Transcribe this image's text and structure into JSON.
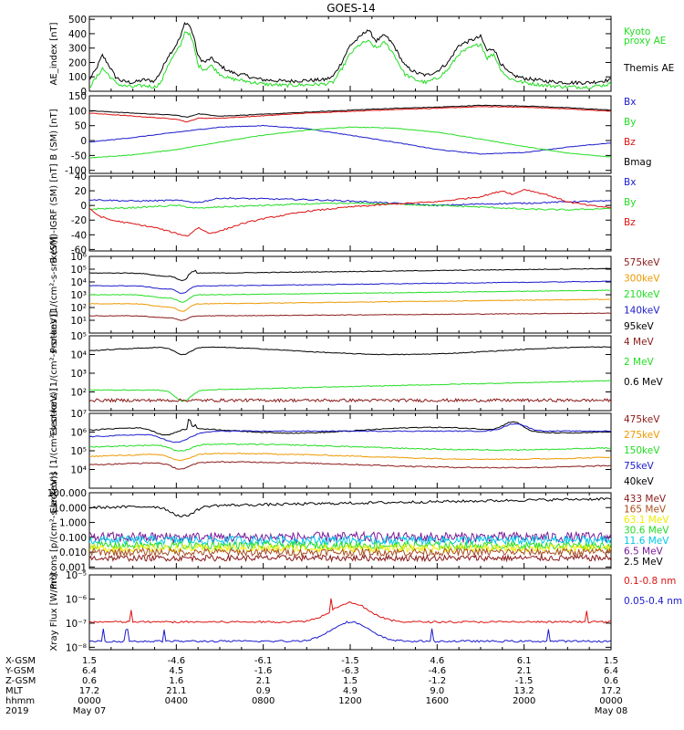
{
  "title": "GOES-14",
  "colors": {
    "black": "#000000",
    "green": "#22dd22",
    "blue": "#1a1acc",
    "red": "#dd1111",
    "orange": "#ee9900",
    "yellow": "#eeee00",
    "cyan": "#00c8e8",
    "purple": "#7a1a9a",
    "darkred": "#8b1a1a",
    "brown": "#a85020"
  },
  "xaxis": {
    "row_labels": [
      "X-GSM",
      "Y-GSM",
      "Z-GSM",
      "MLT",
      "hhmm",
      "2019"
    ],
    "ticks": [
      {
        "x": 0,
        "vals": [
          "1.5",
          "6.4",
          "0.6",
          "17.2",
          "0000",
          "May 07"
        ]
      },
      {
        "x": 4,
        "vals": [
          "-4.6",
          "4.5",
          "1.6",
          "21.1",
          "0400",
          ""
        ]
      },
      {
        "x": 8,
        "vals": [
          "-6.1",
          "-1.6",
          "2.1",
          "0.9",
          "0800",
          ""
        ]
      },
      {
        "x": 12,
        "vals": [
          "-1.5",
          "-6.3",
          "1.5",
          "4.9",
          "1200",
          ""
        ]
      },
      {
        "x": 16,
        "vals": [
          "4.6",
          "-4.6",
          "-1.2",
          "9.0",
          "1600",
          ""
        ]
      },
      {
        "x": 20,
        "vals": [
          "6.1",
          "2.1",
          "-1.5",
          "13.2",
          "2000",
          ""
        ]
      },
      {
        "x": 24,
        "vals": [
          "1.5",
          "6.4",
          "0.6",
          "17.2",
          "0000",
          "May 08"
        ]
      }
    ]
  },
  "chart_data": [
    {
      "type": "line",
      "ylabel": "AE_index [nT]",
      "scale": "linear",
      "ylim": [
        0,
        520
      ],
      "ticks": [
        "0",
        "100",
        "200",
        "300",
        "400",
        "500"
      ],
      "tick_values": [
        0,
        100,
        200,
        300,
        400,
        500
      ],
      "legend": [
        {
          "text": "Kyoto",
          "color": "green"
        },
        {
          "text": "proxy AE",
          "color": "green"
        },
        {
          "text": "Themis AE",
          "color": "black"
        }
      ],
      "series": [
        {
          "name": "Themis AE",
          "color": "black",
          "kind": "ae",
          "x": [
            0,
            0.3,
            0.6,
            0.9,
            1.2,
            1.5,
            2,
            2.5,
            3,
            3.3,
            3.6,
            3.9,
            4.2,
            4.4,
            4.6,
            4.8,
            5,
            5.3,
            5.6,
            6,
            6.4,
            6.8,
            7.2,
            7.6,
            8,
            9,
            10,
            10.8,
            11.2,
            11.6,
            12,
            12.4,
            12.8,
            13.2,
            13.6,
            14,
            14.5,
            15,
            15.5,
            16,
            16.5,
            17,
            17.5,
            18,
            18.3,
            18.6,
            18.9,
            19.2,
            19.5,
            20,
            21,
            22,
            23,
            24
          ],
          "y": [
            80,
            150,
            250,
            180,
            100,
            70,
            60,
            80,
            70,
            140,
            240,
            300,
            380,
            480,
            460,
            380,
            240,
            200,
            230,
            180,
            140,
            120,
            110,
            90,
            80,
            70,
            75,
            80,
            100,
            200,
            320,
            370,
            430,
            350,
            390,
            320,
            180,
            130,
            110,
            140,
            200,
            320,
            350,
            380,
            280,
            300,
            200,
            140,
            110,
            90,
            70,
            60,
            60,
            80
          ]
        },
        {
          "name": "Kyoto proxy AE",
          "color": "green",
          "kind": "ae",
          "x": [
            0,
            0.3,
            0.6,
            0.9,
            1.2,
            1.5,
            2,
            2.5,
            3,
            3.3,
            3.6,
            3.9,
            4.2,
            4.4,
            4.6,
            4.8,
            5,
            5.3,
            5.6,
            6,
            6.4,
            6.8,
            7.2,
            7.6,
            8,
            9,
            10,
            10.8,
            11.2,
            11.6,
            12,
            12.4,
            12.8,
            13.2,
            13.6,
            14,
            14.5,
            15,
            15.5,
            16,
            16.5,
            17,
            17.5,
            18,
            18.3,
            18.6,
            18.9,
            19.2,
            19.5,
            20,
            21,
            22,
            23,
            24
          ],
          "y": [
            30,
            90,
            160,
            110,
            60,
            40,
            30,
            40,
            30,
            60,
            180,
            250,
            320,
            420,
            400,
            320,
            180,
            150,
            180,
            120,
            90,
            80,
            70,
            60,
            50,
            40,
            45,
            50,
            60,
            150,
            260,
            320,
            350,
            300,
            340,
            260,
            120,
            80,
            60,
            90,
            150,
            260,
            300,
            330,
            230,
            260,
            160,
            100,
            80,
            60,
            40,
            30,
            30,
            50
          ]
        }
      ]
    },
    {
      "type": "line",
      "ylabel": "B (SM) [nT]",
      "scale": "linear",
      "ylim": [
        -110,
        150
      ],
      "ticks": [
        "-100",
        "-50",
        "0",
        "50",
        "100",
        "150"
      ],
      "tick_values": [
        -100,
        -50,
        0,
        50,
        100,
        150
      ],
      "legend": [
        {
          "text": "Bx",
          "color": "blue"
        },
        {
          "text": "By",
          "color": "green"
        },
        {
          "text": "Bz",
          "color": "red"
        },
        {
          "text": "Bmag",
          "color": "black"
        }
      ],
      "series": [
        {
          "name": "Bmag",
          "color": "black",
          "x": [
            0,
            2,
            4,
            4.5,
            5,
            6,
            8,
            10,
            12,
            14,
            16,
            18,
            20,
            22,
            24
          ],
          "y": [
            100,
            92,
            85,
            78,
            90,
            82,
            88,
            95,
            102,
            108,
            112,
            118,
            116,
            110,
            102
          ]
        },
        {
          "name": "Bz",
          "color": "red",
          "x": [
            0,
            2,
            4,
            4.5,
            5,
            6,
            8,
            10,
            12,
            14,
            16,
            18,
            20,
            22,
            24
          ],
          "y": [
            92,
            82,
            72,
            62,
            75,
            75,
            83,
            92,
            98,
            104,
            108,
            114,
            112,
            106,
            98
          ]
        },
        {
          "name": "Bx",
          "color": "blue",
          "x": [
            0,
            2,
            4,
            6,
            8,
            10,
            12,
            14,
            16,
            18,
            20,
            22,
            24
          ],
          "y": [
            -5,
            10,
            28,
            45,
            50,
            40,
            18,
            -5,
            -30,
            -45,
            -40,
            -22,
            -8
          ]
        },
        {
          "name": "By",
          "color": "green",
          "x": [
            0,
            2,
            4,
            6,
            8,
            10,
            12,
            14,
            16,
            18,
            20,
            22,
            24
          ],
          "y": [
            -58,
            -48,
            -30,
            -5,
            18,
            35,
            45,
            42,
            28,
            5,
            -20,
            -42,
            -55
          ]
        }
      ]
    },
    {
      "type": "line",
      "ylabel": "B (SM)-IGRF (SM) [nT]",
      "scale": "linear",
      "ylim": [
        -62,
        40
      ],
      "ticks": [
        "-60",
        "-40",
        "-20",
        "0",
        "20",
        "40"
      ],
      "tick_values": [
        -60,
        -40,
        -20,
        0,
        20,
        40
      ],
      "legend": [
        {
          "text": "Bx",
          "color": "blue"
        },
        {
          "text": "By",
          "color": "green"
        },
        {
          "text": "Bz",
          "color": "red"
        }
      ],
      "series": [
        {
          "name": "Bx",
          "color": "blue",
          "x": [
            0,
            2,
            4,
            5,
            6,
            8,
            10,
            12,
            14,
            16,
            18,
            20,
            22,
            24
          ],
          "y": [
            8,
            6,
            7,
            4,
            10,
            9,
            8,
            6,
            3,
            0,
            2,
            3,
            5,
            6
          ]
        },
        {
          "name": "By",
          "color": "green",
          "x": [
            0,
            2,
            4,
            5,
            6,
            8,
            10,
            12,
            14,
            16,
            18,
            20,
            22,
            24
          ],
          "y": [
            -5,
            -3,
            0,
            -4,
            -2,
            0,
            2,
            3,
            2,
            0,
            -2,
            -5,
            -6,
            -4
          ]
        },
        {
          "name": "Bz",
          "color": "red",
          "x": [
            0,
            0.5,
            1,
            2,
            3,
            4,
            4.5,
            5,
            5.5,
            6,
            7,
            8,
            10,
            12,
            14,
            16,
            18,
            19,
            19.5,
            20,
            21,
            22,
            23,
            24
          ],
          "y": [
            -5,
            -15,
            -20,
            -25,
            -30,
            -38,
            -42,
            -30,
            -38,
            -35,
            -25,
            -18,
            -8,
            -2,
            2,
            5,
            12,
            20,
            15,
            22,
            15,
            5,
            0,
            -3
          ]
        }
      ]
    },
    {
      "type": "line",
      "ylabel": "Protons [1/(cm²-s-sr-keV)]",
      "scale": "log",
      "ylim": [
        0,
        6
      ],
      "ticks": [
        "10¹",
        "10²",
        "10³",
        "10⁴",
        "10⁵",
        "10⁶"
      ],
      "tick_values": [
        1,
        2,
        3,
        4,
        5,
        6
      ],
      "legend": [
        {
          "text": "575keV",
          "color": "darkred"
        },
        {
          "text": "300keV",
          "color": "orange"
        },
        {
          "text": "210keV",
          "color": "green"
        },
        {
          "text": "140keV",
          "color": "blue"
        },
        {
          "text": "95keV",
          "color": "black"
        }
      ],
      "series": [
        {
          "name": "95keV",
          "color": "black",
          "kind": "prot",
          "base": 4.7
        },
        {
          "name": "140keV",
          "color": "blue",
          "kind": "prot",
          "base": 3.7
        },
        {
          "name": "210keV",
          "color": "green",
          "kind": "prot",
          "base": 3.0
        },
        {
          "name": "300keV",
          "color": "orange",
          "kind": "prot",
          "base": 2.3
        },
        {
          "name": "575keV",
          "color": "darkred",
          "kind": "prot",
          "base": 1.35
        }
      ]
    },
    {
      "type": "line",
      "ylabel": "Electrons [1/(cm²-s-sr-keV)]",
      "scale": "log",
      "ylim": [
        1,
        5
      ],
      "ticks": [
        "10²",
        "10³",
        "10⁴",
        "10⁵"
      ],
      "tick_values": [
        2,
        3,
        4,
        5
      ],
      "legend": [
        {
          "text": "4 MeV",
          "color": "darkred"
        },
        {
          "text": "2 MeV",
          "color": "green"
        },
        {
          "text": "0.6 MeV",
          "color": "black"
        }
      ],
      "series": [
        {
          "name": "0.6 MeV",
          "color": "black",
          "kind": "el1",
          "base": 4.2
        },
        {
          "name": "2 MeV",
          "color": "green",
          "kind": "el2",
          "base": 2.1
        },
        {
          "name": "4 MeV",
          "color": "darkred",
          "kind": "noise",
          "base": 1.55,
          "amp": 0.08
        }
      ]
    },
    {
      "type": "line",
      "ylabel": "Electrons [1/(cm²-s-sr-keV)]",
      "scale": "log",
      "ylim": [
        3,
        7
      ],
      "ticks": [
        "10⁴",
        "10⁵",
        "10⁶",
        "10⁷"
      ],
      "tick_values": [
        4,
        5,
        6,
        7
      ],
      "legend": [
        {
          "text": "475keV",
          "color": "darkred"
        },
        {
          "text": "275keV",
          "color": "orange"
        },
        {
          "text": "150keV",
          "color": "green"
        },
        {
          "text": "75keV",
          "color": "blue"
        },
        {
          "text": "40keV",
          "color": "black"
        }
      ],
      "series": [
        {
          "name": "40keV",
          "color": "black",
          "kind": "el40",
          "base": 6.1
        },
        {
          "name": "75keV",
          "color": "blue",
          "kind": "el75",
          "base": 5.75
        },
        {
          "name": "150keV",
          "color": "green",
          "kind": "el150",
          "base": 5.2
        },
        {
          "name": "275keV",
          "color": "orange",
          "kind": "el150",
          "base": 4.7
        },
        {
          "name": "475keV",
          "color": "darkred",
          "kind": "el150",
          "base": 4.25
        }
      ]
    },
    {
      "type": "line",
      "ylabel": "Protons [p/(cm²-s-sr-keV)]",
      "scale": "log",
      "ylim": [
        -3.1,
        2
      ],
      "ticks": [
        "0.001",
        "0.010",
        "0.100",
        "1.000",
        "10.000",
        "100.000"
      ],
      "tick_values": [
        -3,
        -2,
        -1,
        0,
        1,
        2
      ],
      "legend": [
        {
          "text": "433 MeV",
          "color": "darkred"
        },
        {
          "text": "165 MeV",
          "color": "brown"
        },
        {
          "text": "63.1 MeV",
          "color": "yellow"
        },
        {
          "text": "30.6 MeV",
          "color": "green"
        },
        {
          "text": "11.6 MeV",
          "color": "cyan"
        },
        {
          "text": "6.5 MeV",
          "color": "purple"
        },
        {
          "text": "2.5 MeV",
          "color": "black"
        }
      ],
      "series": [
        {
          "name": "2.5 MeV",
          "color": "black",
          "kind": "p25",
          "base": 1.0
        },
        {
          "name": "6.5 MeV",
          "color": "purple",
          "kind": "noise",
          "base": -1.0,
          "amp": 0.35
        },
        {
          "name": "11.6 MeV",
          "color": "cyan",
          "kind": "noise",
          "base": -1.2,
          "amp": 0.3
        },
        {
          "name": "30.6 MeV",
          "color": "green",
          "kind": "noise",
          "base": -1.55,
          "amp": 0.25
        },
        {
          "name": "63.1 MeV",
          "color": "yellow",
          "kind": "noise",
          "base": -1.75,
          "amp": 0.25
        },
        {
          "name": "165 MeV",
          "color": "brown",
          "kind": "noise",
          "base": -2.0,
          "amp": 0.25
        },
        {
          "name": "433 MeV",
          "color": "darkred",
          "kind": "noise",
          "base": -2.4,
          "amp": 0.2
        }
      ]
    },
    {
      "type": "line",
      "ylabel": "Xray Flux [W/m²]",
      "scale": "log",
      "ylim": [
        -8.1,
        -5
      ],
      "ticks": [
        "10⁻⁸",
        "10⁻⁷",
        "10⁻⁶",
        "10⁻⁵"
      ],
      "tick_values": [
        -8,
        -7,
        -6,
        -5
      ],
      "legend": [
        {
          "text": "0.1-0.8 nm",
          "color": "red"
        },
        {
          "text": "0.05-0.4 nm",
          "color": "blue"
        }
      ],
      "series": [
        {
          "name": "0.1-0.8 nm",
          "color": "red",
          "kind": "xr",
          "base": -6.95
        },
        {
          "name": "0.05-0.4 nm",
          "color": "blue",
          "kind": "xr",
          "base": -7.75
        }
      ]
    }
  ]
}
